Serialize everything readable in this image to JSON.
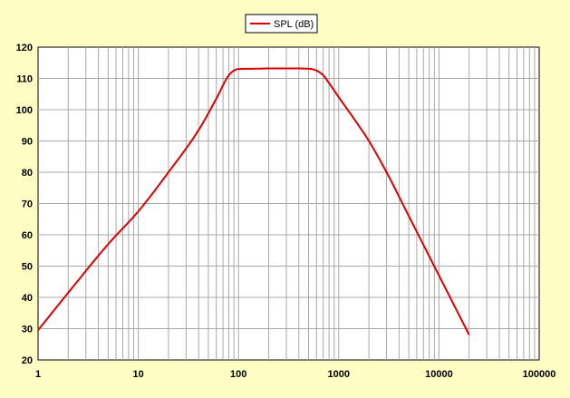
{
  "chart_data": {
    "type": "line",
    "x_scale": "log",
    "xlim": [
      1,
      100000
    ],
    "ylim": [
      20,
      120
    ],
    "x_ticks": [
      1,
      10,
      100,
      1000,
      10000,
      100000
    ],
    "x_tick_labels": [
      "1",
      "10",
      "100",
      "1000",
      "10000",
      "100000"
    ],
    "y_ticks": [
      20,
      30,
      40,
      50,
      60,
      70,
      80,
      90,
      100,
      110,
      120
    ],
    "y_tick_labels": [
      "20",
      "30",
      "40",
      "50",
      "60",
      "70",
      "80",
      "90",
      "100",
      "110",
      "120"
    ],
    "grid": true,
    "legend_position": "top-center",
    "series": [
      {
        "name": "SPL (dB)",
        "color": "#dd0000",
        "x": [
          1,
          2,
          5,
          10,
          20,
          40,
          60,
          80,
          100,
          150,
          200,
          300,
          500,
          600,
          700,
          800,
          1000,
          1500,
          2000,
          3000,
          5000,
          10000,
          20000
        ],
        "y": [
          29.5,
          41.5,
          57,
          67.5,
          80,
          93.5,
          103.5,
          111,
          113,
          113.1,
          113.2,
          113.2,
          113.1,
          112.5,
          111,
          108.5,
          104,
          96,
          90,
          80,
          66,
          47,
          28
        ]
      }
    ]
  }
}
